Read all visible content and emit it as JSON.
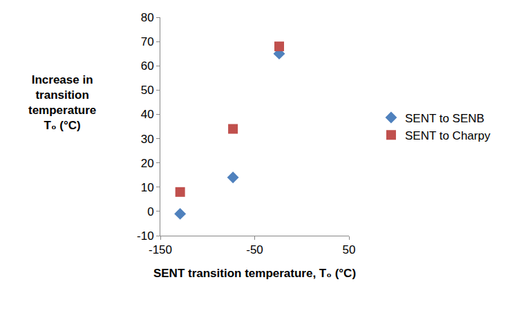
{
  "chart_data": {
    "type": "scatter",
    "xlabel": "SENT transition temperature, T₀ (°C)",
    "ylabel": [
      "Increase in",
      "transition",
      "temperature",
      "T₀ (°C)"
    ],
    "series": [
      {
        "name": "SENT to SENB",
        "color": "#4f81bd",
        "marker": "diamond",
        "x": [
          -129,
          -73,
          -24
        ],
        "values": [
          -1,
          14,
          65
        ]
      },
      {
        "name": "SENT to Charpy",
        "color": "#c0504d",
        "marker": "square",
        "x": [
          -129,
          -73,
          -24
        ],
        "values": [
          8,
          34,
          68
        ]
      }
    ],
    "xlim": [
      -150,
      50
    ],
    "xticks": [
      -150,
      -50,
      50
    ],
    "ylim": [
      -10,
      80
    ],
    "yticks": [
      -10,
      0,
      10,
      20,
      30,
      40,
      50,
      60,
      70,
      80
    ],
    "grid": false,
    "legend": "right"
  }
}
